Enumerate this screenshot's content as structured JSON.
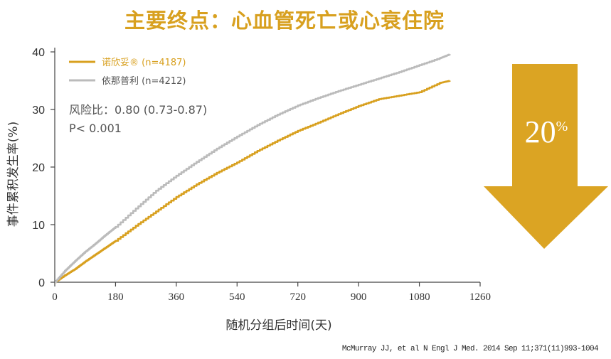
{
  "title": "主要终点：心血管死亡或心衰住院",
  "colors": {
    "accent": "#D8A01F",
    "arrow": "#DBA423",
    "grey": "#BBBBBB"
  },
  "stats": {
    "hazard_ratio": "风险比：0.80 (0.73-0.87)",
    "p_value": "P< 0.001"
  },
  "arrow": {
    "value": "20",
    "unit": "%"
  },
  "citation": "McMurray JJ, et al N Engl J Med. 2014 Sep 11;371(11)993-1004",
  "chart_data": {
    "type": "line",
    "title": "主要终点：心血管死亡或心衰住院",
    "xlabel": "随机分组后时间(天)",
    "ylabel": "事件累积发生率(%)",
    "xlim": [
      0,
      1260
    ],
    "ylim": [
      0,
      40
    ],
    "xticks": [
      "0",
      "180",
      "360",
      "540",
      "720",
      "900",
      "1080",
      "1260"
    ],
    "yticks": [
      "0",
      "10",
      "20",
      "30",
      "40"
    ],
    "legend_position": "top-left",
    "series": [
      {
        "name": "诺欣妥® (n=4187)",
        "color": "#D8A01F",
        "x": [
          0,
          30,
          60,
          90,
          120,
          150,
          180,
          240,
          300,
          360,
          420,
          480,
          540,
          600,
          660,
          720,
          780,
          840,
          900,
          960,
          1020,
          1080,
          1140,
          1170
        ],
        "y": [
          0,
          1.2,
          2.3,
          3.6,
          4.8,
          6.0,
          7.2,
          9.8,
          12.3,
          14.8,
          17.0,
          19.0,
          20.8,
          22.8,
          24.6,
          26.3,
          27.7,
          29.2,
          30.6,
          31.8,
          32.4,
          33.0,
          34.6,
          35.0
        ]
      },
      {
        "name": "依那普利 (n=4212)",
        "color": "#BBBBBB",
        "x": [
          0,
          30,
          60,
          90,
          120,
          150,
          180,
          240,
          300,
          360,
          420,
          480,
          540,
          600,
          660,
          720,
          780,
          840,
          900,
          960,
          1020,
          1080,
          1140,
          1170
        ],
        "y": [
          0,
          2.0,
          3.7,
          5.3,
          6.7,
          8.2,
          9.6,
          12.8,
          15.9,
          18.5,
          20.9,
          23.2,
          25.3,
          27.3,
          29.1,
          30.7,
          32.0,
          33.2,
          34.3,
          35.4,
          36.5,
          37.7,
          38.9,
          39.6
        ]
      }
    ]
  }
}
